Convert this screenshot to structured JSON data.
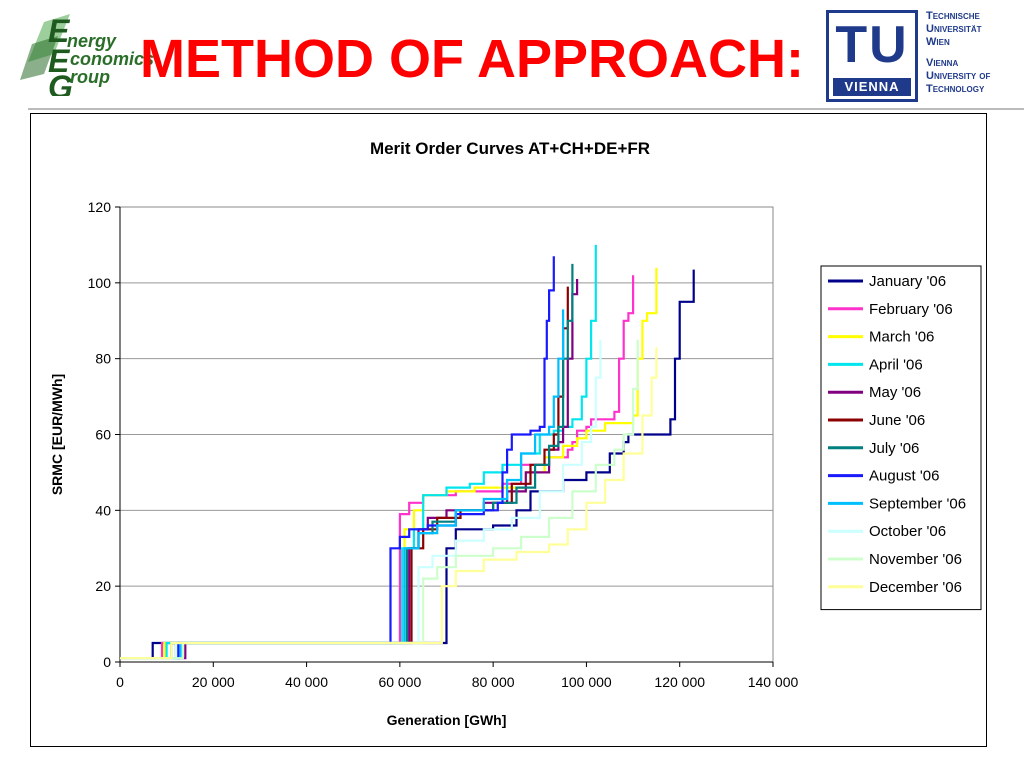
{
  "header": {
    "title": "METHOD OF APPROACH:",
    "left_logo": {
      "lines": [
        "nergy",
        "conomics",
        "roup"
      ],
      "letters": [
        "E",
        "E",
        "G"
      ]
    },
    "right_logo": {
      "mark": "TU",
      "mark_caption": "VIENNA",
      "lines_de": [
        "Technische",
        "Universität",
        "Wien"
      ],
      "lines_en": [
        "Vienna",
        "University of",
        "Technology"
      ]
    }
  },
  "colors": {
    "title_red": "#ff0000",
    "tu_blue": "#1f3a8a",
    "eeg_green": "#2a6e2a"
  },
  "chart_data": {
    "type": "line",
    "title": "Merit Order Curves AT+CH+DE+FR",
    "xlabel": "Generation [GWh]",
    "ylabel": "SRMC [EUR/MWh]",
    "xlim": [
      0,
      140000
    ],
    "ylim": [
      0,
      120
    ],
    "xticks": [
      0,
      20000,
      40000,
      60000,
      80000,
      100000,
      120000,
      140000
    ],
    "xtick_labels": [
      "0",
      "20 000",
      "40 000",
      "60 000",
      "80 000",
      "100 000",
      "120 000",
      "140 000"
    ],
    "yticks": [
      0,
      20,
      40,
      60,
      80,
      100,
      120
    ],
    "ytick_labels": [
      "0",
      "20",
      "40",
      "60",
      "80",
      "100",
      "120"
    ],
    "grid": "horizontal",
    "legend_position": "right",
    "series": [
      {
        "name": "January '06",
        "color": "#00008b",
        "points": [
          [
            0,
            1
          ],
          [
            7000,
            1
          ],
          [
            7000,
            5
          ],
          [
            70000,
            5
          ],
          [
            70000,
            25
          ],
          [
            70000,
            30
          ],
          [
            72000,
            30
          ],
          [
            72000,
            35
          ],
          [
            80000,
            36
          ],
          [
            85000,
            40
          ],
          [
            88000,
            45
          ],
          [
            95000,
            48
          ],
          [
            100000,
            50
          ],
          [
            105000,
            55
          ],
          [
            108000,
            58
          ],
          [
            109000,
            58
          ],
          [
            109000,
            60
          ],
          [
            118000,
            61
          ],
          [
            118000,
            64
          ],
          [
            119000,
            66
          ],
          [
            119000,
            80
          ],
          [
            120000,
            87
          ],
          [
            120000,
            95
          ],
          [
            123000,
            95
          ],
          [
            123000,
            103.5
          ]
        ]
      },
      {
        "name": "February '06",
        "color": "#ff33cc",
        "points": [
          [
            0,
            1
          ],
          [
            9000,
            1
          ],
          [
            9000,
            5
          ],
          [
            60000,
            5
          ],
          [
            60000,
            39
          ],
          [
            62000,
            40
          ],
          [
            62000,
            42
          ],
          [
            65000,
            44
          ],
          [
            72000,
            45
          ],
          [
            78000,
            45
          ],
          [
            82000,
            47
          ],
          [
            86000,
            52
          ],
          [
            92000,
            54
          ],
          [
            96000,
            56
          ],
          [
            97000,
            58
          ],
          [
            98000,
            61
          ],
          [
            100000,
            62
          ],
          [
            101000,
            64
          ],
          [
            106000,
            66
          ],
          [
            107000,
            66
          ],
          [
            107000,
            80
          ],
          [
            108000,
            90
          ],
          [
            109000,
            92
          ],
          [
            110000,
            92
          ],
          [
            110000,
            102
          ]
        ]
      },
      {
        "name": "March '06",
        "color": "#ffff00",
        "points": [
          [
            0,
            1
          ],
          [
            9500,
            1
          ],
          [
            9500,
            5
          ],
          [
            61000,
            5
          ],
          [
            61000,
            35
          ],
          [
            63000,
            40
          ],
          [
            65000,
            44
          ],
          [
            70000,
            45
          ],
          [
            76000,
            46
          ],
          [
            82000,
            46
          ],
          [
            87000,
            50
          ],
          [
            91000,
            54
          ],
          [
            95000,
            57
          ],
          [
            98000,
            59
          ],
          [
            100000,
            61
          ],
          [
            104000,
            63
          ],
          [
            110000,
            65
          ],
          [
            111000,
            65
          ],
          [
            111000,
            80
          ],
          [
            112000,
            90
          ],
          [
            113000,
            92
          ],
          [
            115000,
            92
          ],
          [
            115000,
            104
          ]
        ]
      },
      {
        "name": "April '06",
        "color": "#00e5ee",
        "points": [
          [
            0,
            1
          ],
          [
            10000,
            1
          ],
          [
            10000,
            5
          ],
          [
            60500,
            5
          ],
          [
            60500,
            30
          ],
          [
            63000,
            35
          ],
          [
            65000,
            44
          ],
          [
            70000,
            46
          ],
          [
            75000,
            47
          ],
          [
            78000,
            50
          ],
          [
            82000,
            52
          ],
          [
            86000,
            55
          ],
          [
            90000,
            60
          ],
          [
            93000,
            61
          ],
          [
            95000,
            62
          ],
          [
            97000,
            64
          ],
          [
            99000,
            70
          ],
          [
            100000,
            80
          ],
          [
            101000,
            90
          ],
          [
            102000,
            95
          ],
          [
            102000,
            110
          ]
        ]
      },
      {
        "name": "May '06",
        "color": "#800080",
        "points": [
          [
            0,
            1
          ],
          [
            14000,
            1
          ],
          [
            14000,
            5
          ],
          [
            62000,
            5
          ],
          [
            62000,
            30
          ],
          [
            64000,
            35
          ],
          [
            66000,
            38
          ],
          [
            70000,
            40
          ],
          [
            78000,
            42
          ],
          [
            83000,
            45
          ],
          [
            87000,
            50
          ],
          [
            92000,
            56
          ],
          [
            94000,
            58
          ],
          [
            95000,
            62
          ],
          [
            96000,
            80
          ],
          [
            97000,
            97
          ],
          [
            98000,
            101
          ]
        ]
      },
      {
        "name": "June '06",
        "color": "#8b0000",
        "points": [
          [
            0,
            1
          ],
          [
            12000,
            1
          ],
          [
            12000,
            5
          ],
          [
            62500,
            5
          ],
          [
            62500,
            30
          ],
          [
            65000,
            35
          ],
          [
            68000,
            38
          ],
          [
            73000,
            40
          ],
          [
            80000,
            42
          ],
          [
            84000,
            47
          ],
          [
            88000,
            52
          ],
          [
            91000,
            56
          ],
          [
            93000,
            60
          ],
          [
            94000,
            70
          ],
          [
            95000,
            88
          ],
          [
            96000,
            99
          ]
        ]
      },
      {
        "name": "July '06",
        "color": "#008080",
        "points": [
          [
            0,
            1
          ],
          [
            11000,
            1
          ],
          [
            11000,
            5
          ],
          [
            61500,
            5
          ],
          [
            61500,
            30
          ],
          [
            64000,
            34
          ],
          [
            67000,
            37
          ],
          [
            72000,
            40
          ],
          [
            80000,
            42
          ],
          [
            85000,
            46
          ],
          [
            89000,
            52
          ],
          [
            92000,
            57
          ],
          [
            94000,
            62
          ],
          [
            95000,
            80
          ],
          [
            96000,
            90
          ],
          [
            97000,
            105
          ]
        ]
      },
      {
        "name": "August '06",
        "color": "#1a1aff",
        "points": [
          [
            0,
            1
          ],
          [
            12500,
            1
          ],
          [
            12500,
            5
          ],
          [
            58000,
            5
          ],
          [
            58000,
            30
          ],
          [
            60000,
            33
          ],
          [
            62000,
            35
          ],
          [
            66000,
            36
          ],
          [
            72000,
            39
          ],
          [
            78000,
            40
          ],
          [
            81000,
            42
          ],
          [
            82000,
            50
          ],
          [
            83000,
            56
          ],
          [
            84000,
            60
          ],
          [
            88000,
            61
          ],
          [
            90000,
            62
          ],
          [
            91000,
            80
          ],
          [
            91500,
            90
          ],
          [
            92000,
            98
          ],
          [
            93000,
            107
          ]
        ]
      },
      {
        "name": "September '06",
        "color": "#00bfff",
        "points": [
          [
            0,
            1
          ],
          [
            13000,
            1
          ],
          [
            13000,
            5
          ],
          [
            61000,
            5
          ],
          [
            61000,
            30
          ],
          [
            64000,
            34
          ],
          [
            68000,
            36
          ],
          [
            72000,
            40
          ],
          [
            78000,
            43
          ],
          [
            83000,
            48
          ],
          [
            86000,
            55
          ],
          [
            89000,
            60
          ],
          [
            92000,
            62
          ],
          [
            93000,
            70
          ],
          [
            94000,
            80
          ],
          [
            95000,
            93
          ]
        ]
      },
      {
        "name": "October '06",
        "color": "#ccffff",
        "points": [
          [
            0,
            1
          ],
          [
            12000,
            1
          ],
          [
            12000,
            5
          ],
          [
            64000,
            5
          ],
          [
            64000,
            25
          ],
          [
            67000,
            28
          ],
          [
            72000,
            32
          ],
          [
            78000,
            35
          ],
          [
            84000,
            38
          ],
          [
            90000,
            45
          ],
          [
            95000,
            52
          ],
          [
            99000,
            58
          ],
          [
            101000,
            62
          ],
          [
            102000,
            75
          ],
          [
            103000,
            85
          ]
        ]
      },
      {
        "name": "November '06",
        "color": "#ccffcc",
        "points": [
          [
            0,
            1
          ],
          [
            13500,
            1
          ],
          [
            13500,
            5
          ],
          [
            65000,
            5
          ],
          [
            65000,
            22
          ],
          [
            68000,
            25
          ],
          [
            72000,
            28
          ],
          [
            80000,
            30
          ],
          [
            86000,
            33
          ],
          [
            92000,
            38
          ],
          [
            97000,
            45
          ],
          [
            102000,
            52
          ],
          [
            106000,
            56
          ],
          [
            108000,
            60
          ],
          [
            110000,
            72
          ],
          [
            111000,
            85
          ]
        ]
      },
      {
        "name": "December '06",
        "color": "#ffff99",
        "points": [
          [
            0,
            1
          ],
          [
            11000,
            1
          ],
          [
            11000,
            5
          ],
          [
            69000,
            5
          ],
          [
            69000,
            20
          ],
          [
            72000,
            24
          ],
          [
            78000,
            27
          ],
          [
            85000,
            29
          ],
          [
            92000,
            31
          ],
          [
            96000,
            35
          ],
          [
            100000,
            42
          ],
          [
            104000,
            48
          ],
          [
            108000,
            55
          ],
          [
            112000,
            65
          ],
          [
            114000,
            75
          ],
          [
            115000,
            83
          ]
        ]
      }
    ]
  }
}
